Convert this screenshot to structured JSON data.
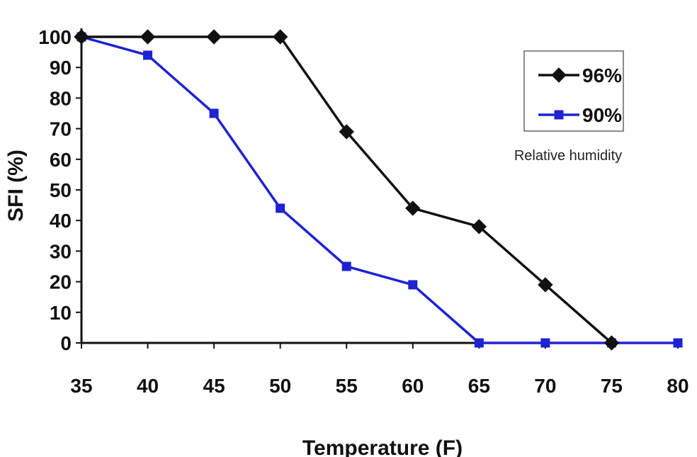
{
  "chart_data": {
    "type": "line",
    "xlabel": "Temperature (F)",
    "ylabel": "SFI (%)",
    "x": [
      35,
      40,
      45,
      50,
      55,
      60,
      65,
      70,
      75,
      80
    ],
    "xlim": [
      35,
      80
    ],
    "ylim": [
      0,
      100
    ],
    "x_ticks": [
      "35",
      "40",
      "45",
      "50",
      "55",
      "60",
      "65",
      "70",
      "75",
      "80"
    ],
    "y_ticks": [
      "0",
      "10",
      "20",
      "30",
      "40",
      "50",
      "60",
      "70",
      "80",
      "90",
      "100"
    ],
    "grid": false,
    "legend_position": "top-right",
    "legend_note": "Relative humidity",
    "series": [
      {
        "name": "96%",
        "color": "#111111",
        "marker": "diamond",
        "x": [
          35,
          40,
          45,
          50,
          55,
          60,
          65,
          70,
          75
        ],
        "values": [
          100,
          100,
          100,
          100,
          69,
          44,
          38,
          19,
          0
        ]
      },
      {
        "name": "90%",
        "color": "#1e22d2",
        "marker": "square",
        "x": [
          35,
          40,
          45,
          50,
          55,
          60,
          65,
          70,
          75,
          80
        ],
        "values": [
          100,
          94,
          75,
          44,
          25,
          19,
          0,
          0,
          0,
          0
        ]
      }
    ]
  }
}
